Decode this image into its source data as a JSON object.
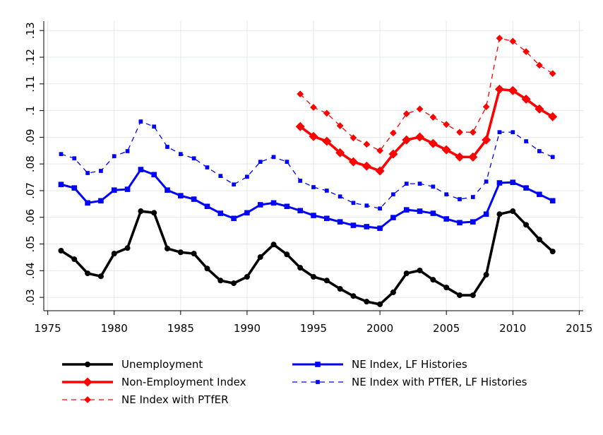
{
  "chart_data": {
    "type": "line",
    "x": [
      1976,
      1977,
      1978,
      1979,
      1980,
      1981,
      1982,
      1983,
      1984,
      1985,
      1986,
      1987,
      1988,
      1989,
      1990,
      1991,
      1992,
      1993,
      1994,
      1995,
      1996,
      1997,
      1998,
      1999,
      2000,
      2001,
      2002,
      2003,
      2004,
      2005,
      2006,
      2007,
      2008,
      2009,
      2010,
      2011,
      2012,
      2013
    ],
    "xlim": [
      1974.7,
      2015.3
    ],
    "xticks": [
      1975,
      1980,
      1985,
      1990,
      1995,
      2000,
      2005,
      2010,
      2015
    ],
    "ylim": [
      0.025,
      0.1335
    ],
    "yticks": [
      {
        "value": 0.03,
        "label": ".03"
      },
      {
        "value": 0.04,
        "label": ".04"
      },
      {
        "value": 0.05,
        "label": ".05"
      },
      {
        "value": 0.06,
        "label": ".06"
      },
      {
        "value": 0.07,
        "label": ".07"
      },
      {
        "value": 0.08,
        "label": ".08"
      },
      {
        "value": 0.09,
        "label": ".09"
      },
      {
        "value": 0.1,
        "label": ".1"
      },
      {
        "value": 0.11,
        "label": ".11"
      },
      {
        "value": 0.12,
        "label": ".12"
      },
      {
        "value": 0.13,
        "label": ".13"
      }
    ],
    "grid": true,
    "legend": "bottom",
    "series": [
      {
        "name": "Unemployment",
        "color": "#000000",
        "dashed": false,
        "marker": "circle",
        "values": [
          0.0475,
          0.0443,
          0.039,
          0.0379,
          0.0464,
          0.0485,
          0.0623,
          0.0617,
          0.0483,
          0.0469,
          0.0464,
          0.0408,
          0.0363,
          0.0353,
          0.0377,
          0.0451,
          0.0498,
          0.0461,
          0.0411,
          0.0377,
          0.0363,
          0.0332,
          0.0305,
          0.0284,
          0.0274,
          0.0319,
          0.039,
          0.0401,
          0.0366,
          0.0337,
          0.0308,
          0.0308,
          0.0385,
          0.0612,
          0.0623,
          0.0572,
          0.0517,
          0.0472
        ]
      },
      {
        "name": "NE Index, LF Histories",
        "color": "#0000ff",
        "dashed": false,
        "marker": "square",
        "values": [
          0.0723,
          0.071,
          0.0654,
          0.0662,
          0.0702,
          0.0705,
          0.0779,
          0.076,
          0.0702,
          0.0681,
          0.0668,
          0.0641,
          0.0615,
          0.0596,
          0.0617,
          0.0647,
          0.0654,
          0.0641,
          0.0625,
          0.0607,
          0.0596,
          0.0583,
          0.057,
          0.0565,
          0.0559,
          0.0599,
          0.0628,
          0.0623,
          0.0615,
          0.0594,
          0.058,
          0.0583,
          0.0612,
          0.0729,
          0.0731,
          0.071,
          0.0686,
          0.0662
        ]
      },
      {
        "name": "Non-Employment Index",
        "color": "#ff0000",
        "dashed": false,
        "marker": "diamond",
        "values": [
          null,
          null,
          null,
          null,
          null,
          null,
          null,
          null,
          null,
          null,
          null,
          null,
          null,
          null,
          null,
          null,
          null,
          null,
          0.094,
          0.0903,
          0.0885,
          0.0842,
          0.0808,
          0.0792,
          0.0774,
          0.0837,
          0.089,
          0.0901,
          0.0877,
          0.0853,
          0.0826,
          0.0826,
          0.089,
          0.108,
          0.1075,
          0.1043,
          0.1006,
          0.0977
        ]
      },
      {
        "name": "NE Index with PTfER, LF Histories",
        "color": "#0000ff",
        "dashed": true,
        "marker": "square",
        "values": [
          0.0837,
          0.0821,
          0.0766,
          0.0774,
          0.0829,
          0.0848,
          0.0959,
          0.094,
          0.0864,
          0.0837,
          0.0821,
          0.0787,
          0.0755,
          0.0723,
          0.0752,
          0.0808,
          0.0826,
          0.0808,
          0.0737,
          0.0713,
          0.07,
          0.0678,
          0.0654,
          0.0644,
          0.0633,
          0.0686,
          0.0726,
          0.0726,
          0.0715,
          0.0686,
          0.0668,
          0.0676,
          0.0734,
          0.0919,
          0.0919,
          0.0885,
          0.0848,
          0.0826
        ]
      },
      {
        "name": "NE Index with PTfER",
        "color": "#ff0000",
        "dashed": true,
        "marker": "diamond",
        "values": [
          null,
          null,
          null,
          null,
          null,
          null,
          null,
          null,
          null,
          null,
          null,
          null,
          null,
          null,
          null,
          null,
          null,
          null,
          0.1062,
          0.1012,
          0.099,
          0.0943,
          0.0898,
          0.0874,
          0.085,
          0.0916,
          0.0988,
          0.1006,
          0.0975,
          0.0948,
          0.0919,
          0.0919,
          0.1014,
          0.1271,
          0.126,
          0.1221,
          0.117,
          0.1139
        ]
      }
    ]
  }
}
